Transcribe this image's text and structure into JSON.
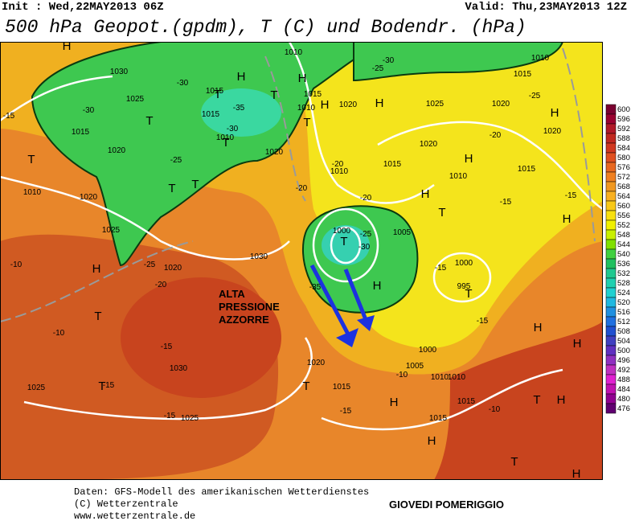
{
  "header": {
    "init": "Init : Wed,22MAY2013 06Z",
    "valid": "Valid: Thu,23MAY2013 12Z",
    "title": "500 hPa Geopot.(gpdm), T (C) und Bodendr. (hPa)"
  },
  "map": {
    "annotation": [
      "ALTA",
      "PRESSIONE",
      "AZZORRE"
    ],
    "labels": [
      "1030",
      "1025",
      "1015",
      "1020",
      "1010",
      "1020",
      "1025",
      "1020",
      "1030",
      "1030",
      "1025",
      "1025",
      "1020",
      "1015",
      "1015",
      "1000",
      "995",
      "1005",
      "1000",
      "1010",
      "1015",
      "1010",
      "1020",
      "1020",
      "1025",
      "1020",
      "1010",
      "1015",
      "1020",
      "1020",
      "1015",
      "1010",
      "1015",
      "1010",
      "1015",
      "1015",
      "1010",
      "1000",
      "1005",
      "1010",
      "1010",
      "1015",
      "-30",
      "-35",
      "-30",
      "-25",
      "-30",
      "-25",
      "-30",
      "-20",
      "-20",
      "-25",
      "-30",
      "-35",
      "-20",
      "-15",
      "-15",
      "-10",
      "-15",
      "-15",
      "-10",
      "-10",
      "-15",
      "-15",
      "-10",
      "-15",
      "-15",
      "-20",
      "-25",
      "-20",
      "-25",
      "-15"
    ],
    "markers": [
      "H",
      "H",
      "H",
      "T",
      "T",
      "T",
      "T",
      "T",
      "T",
      "T",
      "H",
      "H",
      "H",
      "T",
      "H",
      "T",
      "H",
      "T",
      "H",
      "T",
      "H",
      "T",
      "H",
      "H",
      "T",
      "T",
      "H",
      "T",
      "H",
      "H",
      "T",
      "H",
      "H"
    ]
  },
  "colorbar": {
    "labels": [
      600,
      596,
      592,
      588,
      584,
      580,
      576,
      572,
      568,
      564,
      560,
      556,
      552,
      548,
      544,
      540,
      536,
      532,
      528,
      524,
      520,
      516,
      512,
      508,
      504,
      500,
      496,
      492,
      488,
      484,
      480,
      476
    ],
    "colors": [
      "#7a0030",
      "#9a0030",
      "#b01828",
      "#c02820",
      "#d03820",
      "#e05020",
      "#e86820",
      "#f08020",
      "#f09820",
      "#f8b020",
      "#f8c818",
      "#f8e010",
      "#f0f000",
      "#c8f000",
      "#80e000",
      "#40d040",
      "#20c060",
      "#20c890",
      "#20d0b0",
      "#20d0d0",
      "#20b8e0",
      "#2090e0",
      "#2070e0",
      "#2050d0",
      "#4040c0",
      "#6030c0",
      "#9030c0",
      "#c030c0",
      "#e020d0",
      "#c010b0",
      "#900090",
      "#600070"
    ]
  },
  "footer": {
    "lines": [
      "Daten: GFS-Modell des amerikanischen Wetterdienstes",
      "(C) Wetterzentrale",
      "www.wetterzentrale.de"
    ],
    "caption": "GIOVEDI POMERIGGIO"
  }
}
